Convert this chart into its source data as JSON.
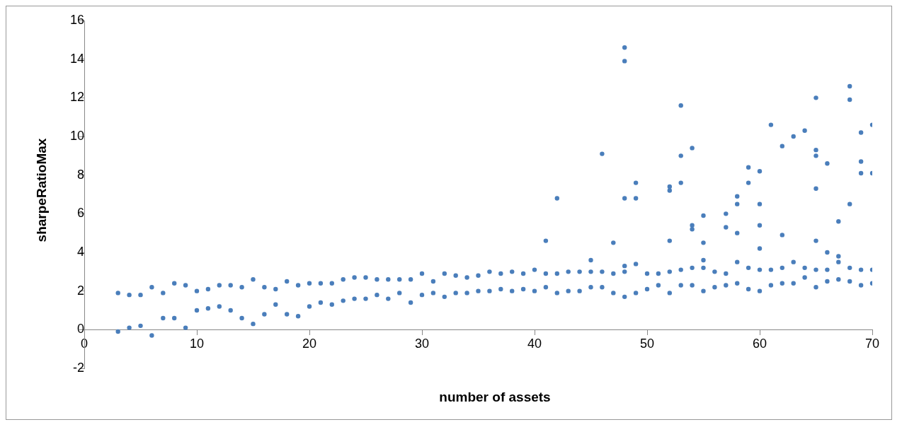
{
  "chart_data": {
    "type": "scatter",
    "xlabel": "number of assets",
    "ylabel": "sharpeRatioMax",
    "xlim": [
      0,
      70
    ],
    "ylim": [
      -2,
      16
    ],
    "xticks": [
      0,
      10,
      20,
      30,
      40,
      50,
      60,
      70
    ],
    "yticks": [
      -2,
      0,
      2,
      4,
      6,
      8,
      10,
      12,
      14,
      16
    ],
    "grid": false,
    "legend": false,
    "marker": "circle",
    "series": [
      {
        "color": "#4a7ebb",
        "x": [
          3,
          3,
          4,
          4,
          5,
          5,
          6,
          6,
          7,
          7,
          8,
          8,
          9,
          9,
          10,
          10,
          11,
          11,
          12,
          12,
          13,
          13,
          14,
          14,
          15,
          15,
          16,
          16,
          17,
          17,
          18,
          18,
          19,
          19,
          20,
          20,
          21,
          21,
          22,
          22,
          23,
          23,
          24,
          24,
          25,
          25,
          26,
          26,
          27,
          27,
          28,
          28,
          29,
          29,
          30,
          30,
          31,
          31,
          32,
          32,
          33,
          33,
          34,
          34,
          35,
          35,
          36,
          36,
          37,
          37,
          38,
          38,
          39,
          39,
          40,
          40,
          41,
          41,
          41,
          42,
          42,
          42,
          43,
          43,
          44,
          44,
          45,
          45,
          45,
          46,
          46,
          46,
          47,
          47,
          47,
          48,
          48,
          48,
          48,
          48,
          48,
          49,
          49,
          49,
          49,
          50,
          50,
          51,
          51,
          52,
          52,
          52,
          52,
          52,
          53,
          53,
          53,
          53,
          53,
          54,
          54,
          54,
          54,
          54,
          55,
          55,
          55,
          55,
          55,
          56,
          56,
          57,
          57,
          57,
          57,
          58,
          58,
          58,
          58,
          58,
          59,
          59,
          59,
          59,
          60,
          60,
          60,
          60,
          60,
          60,
          61,
          61,
          61,
          62,
          62,
          62,
          62,
          63,
          63,
          63,
          64,
          64,
          64,
          65,
          65,
          65,
          65,
          65,
          65,
          65,
          66,
          66,
          66,
          66,
          67,
          67,
          67,
          67,
          68,
          68,
          68,
          68,
          68,
          69,
          69,
          69,
          69,
          69,
          70,
          70,
          70,
          70
        ],
        "values": [
          -0.1,
          1.9,
          0.1,
          1.8,
          0.2,
          1.8,
          -0.3,
          2.2,
          0.6,
          1.9,
          0.6,
          2.4,
          0.1,
          2.3,
          1.0,
          2.0,
          1.1,
          2.1,
          1.2,
          2.3,
          1.0,
          2.3,
          0.6,
          2.2,
          0.3,
          2.6,
          0.8,
          2.2,
          1.3,
          2.1,
          0.8,
          2.5,
          0.7,
          2.3,
          1.2,
          2.4,
          1.4,
          2.4,
          1.3,
          2.4,
          1.5,
          2.6,
          1.6,
          2.7,
          1.6,
          2.7,
          1.8,
          2.6,
          1.6,
          2.6,
          1.9,
          2.6,
          1.4,
          2.6,
          1.8,
          2.9,
          1.9,
          2.5,
          1.7,
          2.9,
          1.9,
          2.8,
          1.9,
          2.7,
          2.0,
          2.8,
          2.0,
          3.0,
          2.1,
          2.9,
          2.0,
          3.0,
          2.1,
          2.9,
          2.0,
          3.1,
          2.2,
          2.9,
          4.6,
          1.9,
          2.9,
          6.8,
          2.0,
          3.0,
          2.0,
          3.0,
          2.2,
          3.0,
          3.6,
          2.2,
          3.0,
          9.1,
          1.9,
          2.9,
          4.5,
          1.7,
          3.0,
          3.3,
          6.8,
          13.9,
          14.6,
          1.9,
          3.4,
          6.8,
          7.6,
          2.1,
          2.9,
          2.3,
          2.9,
          1.9,
          3.0,
          4.6,
          7.2,
          7.4,
          2.3,
          3.1,
          7.6,
          9.0,
          11.6,
          2.3,
          3.2,
          5.2,
          5.4,
          9.4,
          2.0,
          3.2,
          3.6,
          4.5,
          5.9,
          2.2,
          3.0,
          2.3,
          2.9,
          5.3,
          6.0,
          2.4,
          3.5,
          5.0,
          6.5,
          6.9,
          2.1,
          3.2,
          7.6,
          8.4,
          2.0,
          3.1,
          4.2,
          5.4,
          6.5,
          8.2,
          2.3,
          3.1,
          10.6,
          2.4,
          3.2,
          4.9,
          9.5,
          2.4,
          3.5,
          10.0,
          2.7,
          3.2,
          10.3,
          2.2,
          3.1,
          4.6,
          7.3,
          9.0,
          9.3,
          12.0,
          2.5,
          3.1,
          4.0,
          8.6,
          2.6,
          3.8,
          3.5,
          5.6,
          2.5,
          3.2,
          6.5,
          11.9,
          12.6,
          2.3,
          3.1,
          8.1,
          8.7,
          10.2,
          2.4,
          3.1,
          8.1,
          10.6
        ]
      }
    ]
  }
}
